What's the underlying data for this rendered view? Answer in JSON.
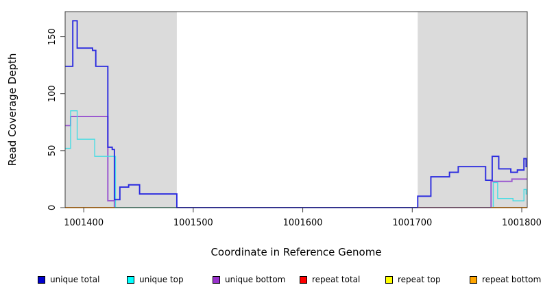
{
  "chart_data": {
    "type": "line",
    "step_interpolation": true,
    "title": "",
    "xlabel": "Coordinate in Reference Genome",
    "ylabel": "Read Coverage Depth",
    "xlim": [
      1001383,
      1001805
    ],
    "ylim": [
      0,
      172
    ],
    "x_tick_values": [
      1001400,
      1001500,
      1001600,
      1001700,
      1001800
    ],
    "x_tick_labels": [
      "1001400",
      "1001500",
      "1001600",
      "1001700",
      "1001800"
    ],
    "y_tick_values": [
      0,
      50,
      100,
      150
    ],
    "y_tick_labels": [
      "0",
      "50",
      "100",
      "150"
    ],
    "grid": false,
    "legend_position": "bottom",
    "shaded_regions": {
      "color": "#dbdbdb",
      "x_ranges": [
        [
          1001383,
          1001485
        ],
        [
          1001705,
          1001805
        ]
      ]
    },
    "series": [
      {
        "name": "unique total",
        "legend_color": "#0000cd",
        "line_color": "#2b2bdf",
        "line_width": 1.9,
        "draw_order": 4,
        "segments": [
          {
            "steps": [
              [
                1001383,
                124
              ],
              [
                1001390,
                164
              ],
              [
                1001394,
                140
              ],
              [
                1001408,
                138
              ],
              [
                1001411,
                124
              ],
              [
                1001422,
                53
              ],
              [
                1001426,
                51
              ],
              [
                1001428,
                7
              ],
              [
                1001433,
                18
              ],
              [
                1001441,
                20
              ],
              [
                1001451,
                12
              ],
              [
                1001485,
                0
              ],
              [
                1001705,
                10
              ],
              [
                1001717,
                27
              ],
              [
                1001734,
                31
              ],
              [
                1001742,
                36
              ],
              [
                1001767,
                24
              ],
              [
                1001773,
                45
              ],
              [
                1001779,
                34
              ],
              [
                1001790,
                31
              ],
              [
                1001796,
                33
              ],
              [
                1001802,
                43
              ],
              [
                1001804,
                36
              ]
            ],
            "end_x": 1001805
          }
        ]
      },
      {
        "name": "unique top",
        "legend_color": "#00ffff",
        "line_color": "#45dce4",
        "line_width": 1.4,
        "draw_order": 2,
        "segments": [
          {
            "steps": [
              [
                1001383,
                52
              ],
              [
                1001388,
                85
              ],
              [
                1001394,
                60
              ],
              [
                1001410,
                45
              ],
              [
                1001429,
                0
              ],
              [
                1001774,
                22
              ],
              [
                1001778,
                8
              ],
              [
                1001792,
                6
              ],
              [
                1001802,
                16
              ],
              [
                1001804,
                12
              ]
            ],
            "end_x": 1001805
          }
        ]
      },
      {
        "name": "unique bottom",
        "legend_color": "#9932cc",
        "line_color": "#9b59d0",
        "line_width": 2.0,
        "draw_order": 1,
        "segments": [
          {
            "steps": [
              [
                1001383,
                72
              ],
              [
                1001388,
                80
              ],
              [
                1001422,
                6
              ],
              [
                1001428,
                0
              ],
              [
                1001772,
                23
              ],
              [
                1001791,
                25
              ]
            ],
            "end_x": 1001805
          }
        ]
      },
      {
        "name": "repeat total",
        "legend_color": "#ff0000",
        "line_color": "#e8505e",
        "line_width": 1.6,
        "draw_order": 5,
        "segments": [
          {
            "steps": [
              [
                1001705,
                0
              ]
            ],
            "end_x": 1001772
          }
        ]
      },
      {
        "name": "repeat top",
        "legend_color": "#ffff00",
        "line_color": "#7fce96",
        "line_width": 1.8,
        "draw_order": 3,
        "segments": [
          {
            "steps": [
              [
                1001428,
                0
              ]
            ],
            "end_x": 1001485
          }
        ]
      },
      {
        "name": "repeat bottom",
        "legend_color": "#ffa500",
        "line_color": "#ff9718",
        "line_width": 2.0,
        "draw_order": 6,
        "segments": [
          {
            "steps": [
              [
                1001383,
                0
              ]
            ],
            "end_x": 1001428
          },
          {
            "steps": [
              [
                1001772,
                0
              ]
            ],
            "end_x": 1001805
          }
        ]
      }
    ]
  }
}
